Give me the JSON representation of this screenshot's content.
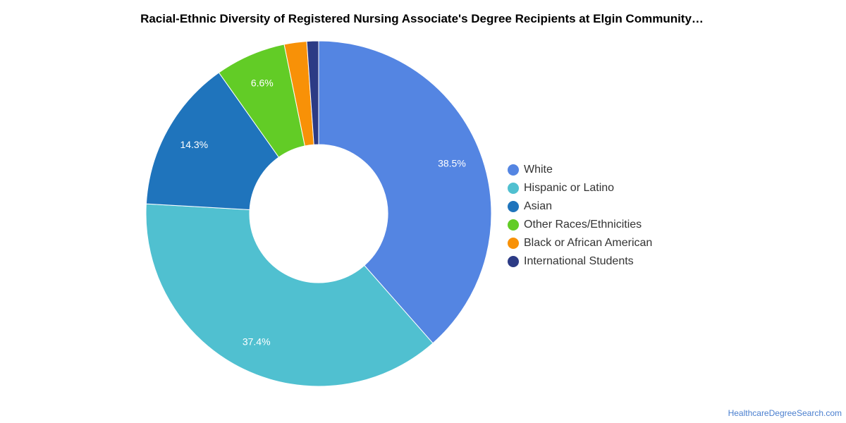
{
  "chart_data": {
    "type": "pie",
    "title": "Racial-Ethnic Diversity of Registered Nursing Associate's Degree Recipients at Elgin Community…",
    "categories": [
      "White",
      "Hispanic or Latino",
      "Asian",
      "Other Races/Ethnicities",
      "Black or African American",
      "International Students"
    ],
    "values": [
      38.5,
      37.4,
      14.3,
      6.6,
      2.1,
      1.1
    ],
    "data_labels": [
      "38.5%",
      "37.4%",
      "14.3%",
      "6.6%",
      "",
      ""
    ],
    "colors": [
      "#5485e2",
      "#50c0d0",
      "#1f74bc",
      "#62cc26",
      "#f89107",
      "#2c3b85"
    ],
    "donut": true,
    "legend_position": "right"
  },
  "credit": "HealthcareDegreeSearch.com"
}
